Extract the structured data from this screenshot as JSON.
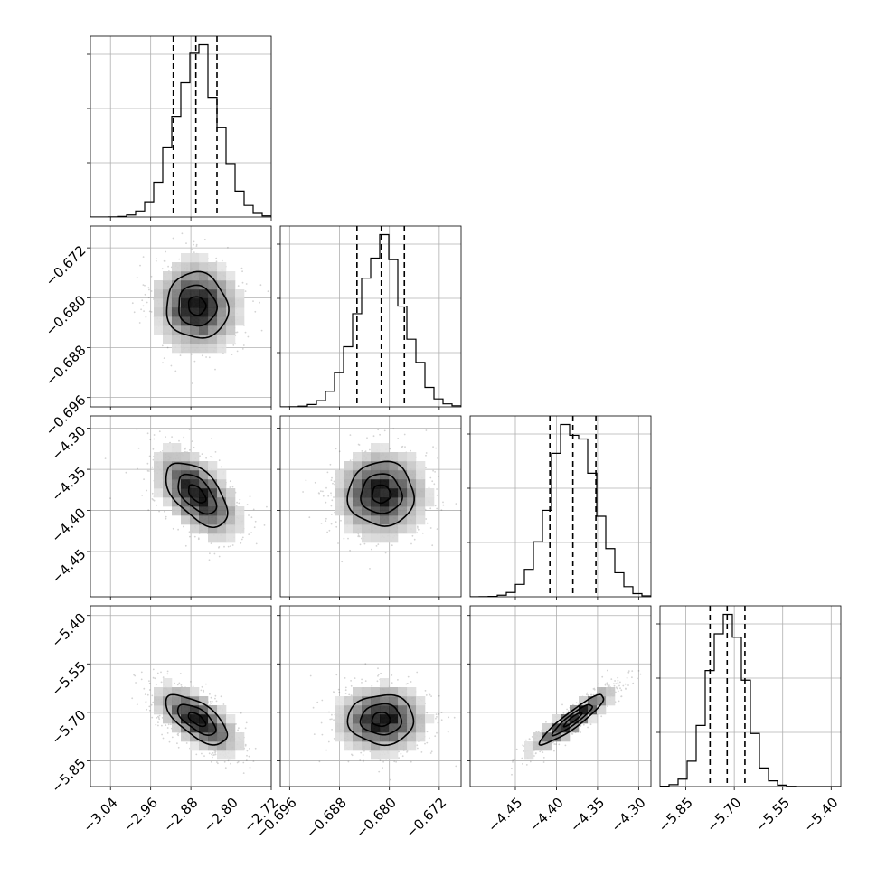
{
  "chart_data": {
    "type": "corner",
    "parameters": [
      {
        "index": 0,
        "range": [
          -3.08,
          -2.72
        ],
        "ticks": [
          -3.04,
          -2.96,
          -2.88,
          -2.8,
          -2.72
        ],
        "tick_labels": [
          "−3.04",
          "−2.96",
          "−2.88",
          "−2.80",
          "−2.72"
        ],
        "quantiles": [
          -2.915,
          -2.87,
          -2.828
        ],
        "mean": -2.868,
        "sd": 0.044
      },
      {
        "index": 1,
        "range": [
          -0.6975,
          -0.6685
        ],
        "ticks": [
          -0.696,
          -0.688,
          -0.68,
          -0.672
        ],
        "tick_labels": [
          "−0.696",
          "−0.688",
          "−0.680",
          "−0.672"
        ],
        "quantiles": [
          -0.6852,
          -0.6813,
          -0.6776
        ],
        "mean": -0.6813,
        "sd": 0.0038
      },
      {
        "index": 2,
        "range": [
          -4.505,
          -4.285
        ],
        "ticks": [
          -4.45,
          -4.4,
          -4.35,
          -4.3
        ],
        "tick_labels": [
          "−4.45",
          "−4.40",
          "−4.35",
          "−4.30"
        ],
        "quantiles": [
          -4.408,
          -4.38,
          -4.352
        ],
        "mean": -4.38,
        "sd": 0.028
      },
      {
        "index": 3,
        "range": [
          -5.93,
          -5.37
        ],
        "ticks": [
          -5.85,
          -5.7,
          -5.55,
          -5.4
        ],
        "tick_labels": [
          "−5.85",
          "−5.70",
          "−5.55",
          "−5.40"
        ],
        "quantiles": [
          -5.775,
          -5.722,
          -5.667
        ],
        "mean": -5.722,
        "sd": 0.055
      }
    ],
    "correlations": {
      "1_0": -0.05,
      "2_0": -0.55,
      "2_1": 0.0,
      "3_0": -0.65,
      "3_1": 0.0,
      "3_2": 0.92
    },
    "histogram_bins": 20,
    "contour_levels": [
      0.39,
      0.86,
      1.39
    ],
    "grid": true,
    "axis_labels": {
      "x": [
        "",
        "",
        "",
        ""
      ],
      "y": [
        "",
        "",
        ""
      ]
    }
  }
}
